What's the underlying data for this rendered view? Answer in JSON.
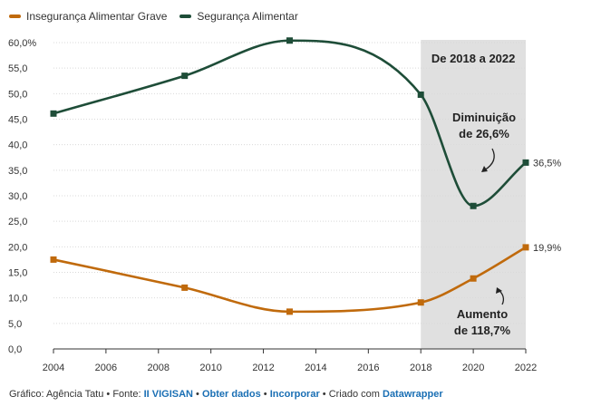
{
  "chart_data": {
    "type": "line",
    "x": [
      2004,
      2009,
      2013,
      2018,
      2020,
      2022
    ],
    "series": [
      {
        "name": "Insegurança Alimentar Grave",
        "color": "#c06a0c",
        "values": [
          17.5,
          12.0,
          7.3,
          9.1,
          13.8,
          19.9
        ]
      },
      {
        "name": "Segurança Alimentar",
        "color": "#1e4d38",
        "values": [
          46.1,
          53.5,
          60.4,
          49.8,
          28.0,
          36.5
        ]
      }
    ],
    "xlim": [
      2004,
      2022
    ],
    "ylim": [
      0,
      60
    ],
    "xticks": [
      "2004",
      "2006",
      "2008",
      "2010",
      "2012",
      "2014",
      "2016",
      "2018",
      "2020",
      "2022"
    ],
    "yticks": [
      "0,0",
      "5,0",
      "10,0",
      "15,0",
      "20,0",
      "25,0",
      "30,0",
      "35,0",
      "40,0",
      "45,0",
      "50,0",
      "55,0",
      "60,0%"
    ],
    "grid": true,
    "legend_position": "top-left",
    "highlight": {
      "from": 2018,
      "to": 2022,
      "label": "De 2018 a 2022",
      "color": "#e0e0e0"
    },
    "end_labels": [
      "19,9%",
      "36,5%"
    ],
    "annotations": [
      {
        "line1": "Diminuição",
        "line2": "de 26,6%"
      },
      {
        "line1": "Aumento",
        "line2": "de 118,7%"
      }
    ]
  },
  "footer": {
    "prefix": "Gráfico: Agência Tatu • Fonte: ",
    "source_link": "II VIGISAN",
    "bullet": " • ",
    "get_data": "Obter dados",
    "embed": "Incorporar",
    "created_with": " • Criado com ",
    "tool": "Datawrapper"
  }
}
